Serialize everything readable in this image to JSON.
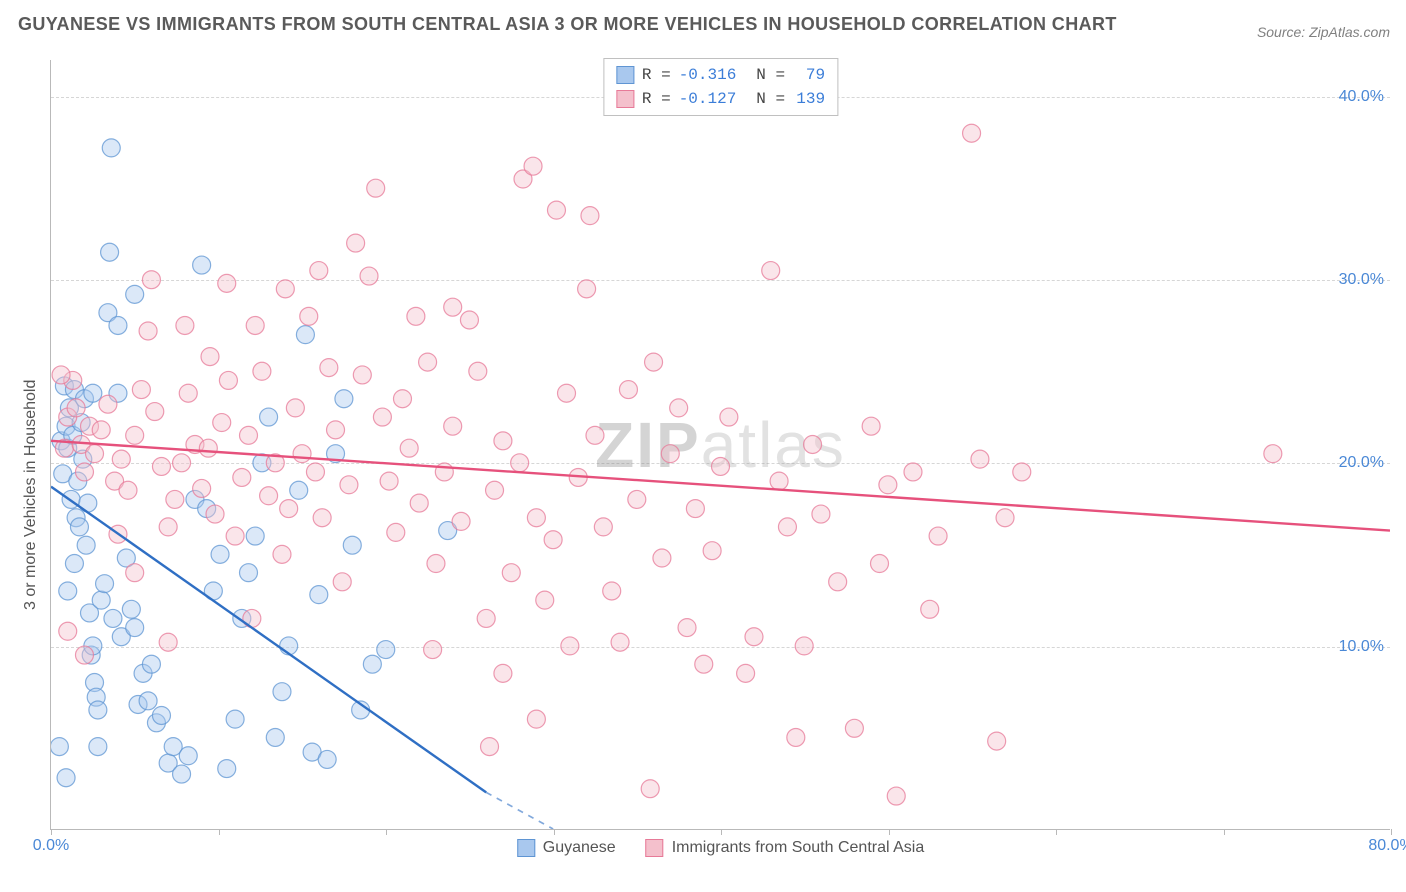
{
  "title": "GUYANESE VS IMMIGRANTS FROM SOUTH CENTRAL ASIA 3 OR MORE VEHICLES IN HOUSEHOLD CORRELATION CHART",
  "source": "Source: ZipAtlas.com",
  "y_axis_label": "3 or more Vehicles in Household",
  "watermark": "ZIPatlas",
  "chart": {
    "type": "scatter",
    "xlim": [
      0,
      80
    ],
    "ylim": [
      0,
      42
    ],
    "x_ticks": [
      0,
      10,
      20,
      30,
      40,
      50,
      60,
      70,
      80
    ],
    "x_tick_labels": {
      "0": "0.0%",
      "80": "80.0%"
    },
    "y_ticks": [
      10,
      20,
      30,
      40
    ],
    "y_tick_labels": {
      "10": "10.0%",
      "20": "20.0%",
      "30": "30.0%",
      "40": "40.0%"
    },
    "background_color": "#ffffff",
    "grid_color": "#d6d6d6",
    "axis_color": "#b9b9b9",
    "tick_label_color": "#4a88d6",
    "marker_radius": 9,
    "marker_opacity": 0.42,
    "marker_stroke_opacity": 0.75,
    "line_width": 2.4,
    "series": [
      {
        "name": "Guyanese",
        "color_fill": "#a9c8ee",
        "color_stroke": "#5f95d3",
        "line_color": "#2f6fc4",
        "R": "-0.316",
        "N": "79",
        "trend": {
          "x1": 0,
          "y1": 18.7,
          "x2": 26,
          "y2": 2.0
        },
        "trend_dash": {
          "x1": 26,
          "y1": 2.0,
          "x2": 30,
          "y2": 0
        },
        "points": [
          [
            0.6,
            21.2
          ],
          [
            0.7,
            19.4
          ],
          [
            0.8,
            24.2
          ],
          [
            0.9,
            22.0
          ],
          [
            1.0,
            20.8
          ],
          [
            1.1,
            23.0
          ],
          [
            1.2,
            18.0
          ],
          [
            1.3,
            21.5
          ],
          [
            1.4,
            24.0
          ],
          [
            1.5,
            17.0
          ],
          [
            1.6,
            19.0
          ],
          [
            1.7,
            16.5
          ],
          [
            1.8,
            22.2
          ],
          [
            1.9,
            20.2
          ],
          [
            2.0,
            23.5
          ],
          [
            2.1,
            15.5
          ],
          [
            2.2,
            17.8
          ],
          [
            2.3,
            11.8
          ],
          [
            2.4,
            9.5
          ],
          [
            2.5,
            10.0
          ],
          [
            2.6,
            8.0
          ],
          [
            2.7,
            7.2
          ],
          [
            2.8,
            6.5
          ],
          [
            3.0,
            12.5
          ],
          [
            3.2,
            13.4
          ],
          [
            3.4,
            28.2
          ],
          [
            3.5,
            31.5
          ],
          [
            3.6,
            37.2
          ],
          [
            4.0,
            27.5
          ],
          [
            4.2,
            10.5
          ],
          [
            4.5,
            14.8
          ],
          [
            4.8,
            12.0
          ],
          [
            5.0,
            11.0
          ],
          [
            5.2,
            6.8
          ],
          [
            5.5,
            8.5
          ],
          [
            5.8,
            7.0
          ],
          [
            6.0,
            9.0
          ],
          [
            6.3,
            5.8
          ],
          [
            6.6,
            6.2
          ],
          [
            7.0,
            3.6
          ],
          [
            7.3,
            4.5
          ],
          [
            7.8,
            3.0
          ],
          [
            8.2,
            4.0
          ],
          [
            8.6,
            18.0
          ],
          [
            9.0,
            30.8
          ],
          [
            9.3,
            17.5
          ],
          [
            9.7,
            13.0
          ],
          [
            10.1,
            15.0
          ],
          [
            10.5,
            3.3
          ],
          [
            11.0,
            6.0
          ],
          [
            11.4,
            11.5
          ],
          [
            11.8,
            14.0
          ],
          [
            12.2,
            16.0
          ],
          [
            12.6,
            20.0
          ],
          [
            13.0,
            22.5
          ],
          [
            13.4,
            5.0
          ],
          [
            13.8,
            7.5
          ],
          [
            14.2,
            10.0
          ],
          [
            14.8,
            18.5
          ],
          [
            15.2,
            27.0
          ],
          [
            15.6,
            4.2
          ],
          [
            16.0,
            12.8
          ],
          [
            16.5,
            3.8
          ],
          [
            17.0,
            20.5
          ],
          [
            17.5,
            23.5
          ],
          [
            18.0,
            15.5
          ],
          [
            18.5,
            6.5
          ],
          [
            19.2,
            9.0
          ],
          [
            20.0,
            9.8
          ],
          [
            23.7,
            16.3
          ],
          [
            0.5,
            4.5
          ],
          [
            0.9,
            2.8
          ],
          [
            1.0,
            13.0
          ],
          [
            1.4,
            14.5
          ],
          [
            2.8,
            4.5
          ],
          [
            5.0,
            29.2
          ],
          [
            4.0,
            23.8
          ],
          [
            2.5,
            23.8
          ],
          [
            3.7,
            11.5
          ]
        ]
      },
      {
        "name": "Immigrants from South Central Asia",
        "color_fill": "#f4c0cc",
        "color_stroke": "#e77a98",
        "line_color": "#e6517c",
        "R": "-0.127",
        "N": "139",
        "trend": {
          "x1": 0,
          "y1": 21.2,
          "x2": 80,
          "y2": 16.3
        },
        "points": [
          [
            0.8,
            20.8
          ],
          [
            1.0,
            22.5
          ],
          [
            1.3,
            24.5
          ],
          [
            1.5,
            23.0
          ],
          [
            1.8,
            21.0
          ],
          [
            2.0,
            19.5
          ],
          [
            2.3,
            22.0
          ],
          [
            2.6,
            20.5
          ],
          [
            3.0,
            21.8
          ],
          [
            3.4,
            23.2
          ],
          [
            3.8,
            19.0
          ],
          [
            4.2,
            20.2
          ],
          [
            4.6,
            18.5
          ],
          [
            5.0,
            21.5
          ],
          [
            5.4,
            24.0
          ],
          [
            5.8,
            27.2
          ],
          [
            6.2,
            22.8
          ],
          [
            6.6,
            19.8
          ],
          [
            7.0,
            16.5
          ],
          [
            7.4,
            18.0
          ],
          [
            7.8,
            20.0
          ],
          [
            8.2,
            23.8
          ],
          [
            8.6,
            21.0
          ],
          [
            9.0,
            18.6
          ],
          [
            9.4,
            20.8
          ],
          [
            9.8,
            17.2
          ],
          [
            10.2,
            22.2
          ],
          [
            10.6,
            24.5
          ],
          [
            11.0,
            16.0
          ],
          [
            11.4,
            19.2
          ],
          [
            11.8,
            21.5
          ],
          [
            12.2,
            27.5
          ],
          [
            12.6,
            25.0
          ],
          [
            13.0,
            18.2
          ],
          [
            13.4,
            20.0
          ],
          [
            13.8,
            15.0
          ],
          [
            14.2,
            17.5
          ],
          [
            14.6,
            23.0
          ],
          [
            15.0,
            20.5
          ],
          [
            15.4,
            28.0
          ],
          [
            15.8,
            19.5
          ],
          [
            16.2,
            17.0
          ],
          [
            16.6,
            25.2
          ],
          [
            17.0,
            21.8
          ],
          [
            17.4,
            13.5
          ],
          [
            17.8,
            18.8
          ],
          [
            18.6,
            24.8
          ],
          [
            19.0,
            30.2
          ],
          [
            19.4,
            35.0
          ],
          [
            19.8,
            22.5
          ],
          [
            20.2,
            19.0
          ],
          [
            20.6,
            16.2
          ],
          [
            21.0,
            23.5
          ],
          [
            21.4,
            20.8
          ],
          [
            22.0,
            17.8
          ],
          [
            22.5,
            25.5
          ],
          [
            23.0,
            14.5
          ],
          [
            23.5,
            19.5
          ],
          [
            24.0,
            22.0
          ],
          [
            24.5,
            16.8
          ],
          [
            25.0,
            27.8
          ],
          [
            25.5,
            25.0
          ],
          [
            26.0,
            11.5
          ],
          [
            26.2,
            4.5
          ],
          [
            26.5,
            18.5
          ],
          [
            27.0,
            21.2
          ],
          [
            27.5,
            14.0
          ],
          [
            28.0,
            20.0
          ],
          [
            28.2,
            35.5
          ],
          [
            28.8,
            36.2
          ],
          [
            29.0,
            17.0
          ],
          [
            29.5,
            12.5
          ],
          [
            30.0,
            15.8
          ],
          [
            30.2,
            33.8
          ],
          [
            30.8,
            23.8
          ],
          [
            31.5,
            19.2
          ],
          [
            32.0,
            29.5
          ],
          [
            32.2,
            33.5
          ],
          [
            32.5,
            21.5
          ],
          [
            33.0,
            16.5
          ],
          [
            33.5,
            13.0
          ],
          [
            34.0,
            10.2
          ],
          [
            34.5,
            24.0
          ],
          [
            35.0,
            18.0
          ],
          [
            35.8,
            2.2
          ],
          [
            36.5,
            14.8
          ],
          [
            37.0,
            20.5
          ],
          [
            37.5,
            23.0
          ],
          [
            38.0,
            11.0
          ],
          [
            38.5,
            17.5
          ],
          [
            39.0,
            9.0
          ],
          [
            39.5,
            15.2
          ],
          [
            40.0,
            19.8
          ],
          [
            40.5,
            22.5
          ],
          [
            41.5,
            8.5
          ],
          [
            42.0,
            10.5
          ],
          [
            43.0,
            30.5
          ],
          [
            43.5,
            19.0
          ],
          [
            44.0,
            16.5
          ],
          [
            44.5,
            5.0
          ],
          [
            45.5,
            21.0
          ],
          [
            46.0,
            17.2
          ],
          [
            47.0,
            13.5
          ],
          [
            48.0,
            5.5
          ],
          [
            49.0,
            22.0
          ],
          [
            50.0,
            18.8
          ],
          [
            50.5,
            1.8
          ],
          [
            51.5,
            19.5
          ],
          [
            52.5,
            12.0
          ],
          [
            53.0,
            16.0
          ],
          [
            55.0,
            38.0
          ],
          [
            55.5,
            20.2
          ],
          [
            56.5,
            4.8
          ],
          [
            57.0,
            17.0
          ],
          [
            58.0,
            19.5
          ],
          [
            73.0,
            20.5
          ],
          [
            1.0,
            10.8
          ],
          [
            0.6,
            24.8
          ],
          [
            2.0,
            9.5
          ],
          [
            6.0,
            30.0
          ],
          [
            10.5,
            29.8
          ],
          [
            12.0,
            11.5
          ],
          [
            18.2,
            32.0
          ],
          [
            8.0,
            27.5
          ],
          [
            9.5,
            25.8
          ],
          [
            4.0,
            16.1
          ],
          [
            14.0,
            29.5
          ],
          [
            16.0,
            30.5
          ],
          [
            7.0,
            10.2
          ],
          [
            5.0,
            14.0
          ],
          [
            21.8,
            28.0
          ],
          [
            22.8,
            9.8
          ],
          [
            36.0,
            25.5
          ],
          [
            45.0,
            10.0
          ],
          [
            49.5,
            14.5
          ],
          [
            24.0,
            28.5
          ],
          [
            31.0,
            10.0
          ],
          [
            27.0,
            8.5
          ],
          [
            29.0,
            6.0
          ]
        ]
      }
    ]
  },
  "legend_bottom": [
    {
      "swatch_fill": "#a9c8ee",
      "swatch_stroke": "#5f95d3",
      "label": "Guyanese"
    },
    {
      "swatch_fill": "#f4c0cc",
      "swatch_stroke": "#e77a98",
      "label": "Immigrants from South Central Asia"
    }
  ],
  "legend_top_labels": {
    "R": "R =",
    "N": "N ="
  }
}
